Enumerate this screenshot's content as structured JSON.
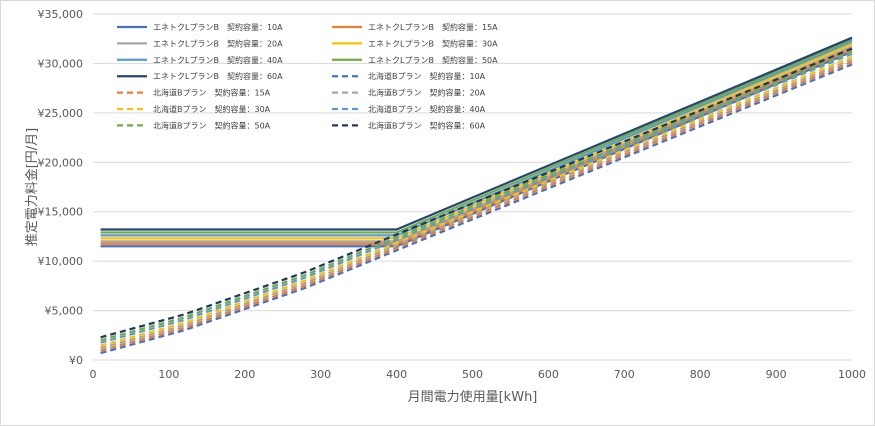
{
  "chart_data": {
    "type": "line",
    "title": "",
    "xlabel": "月間電力使用量[kWh]",
    "ylabel": "推定電力料金[円/月]",
    "xlim": [
      0,
      1000
    ],
    "ylim": [
      0,
      35000
    ],
    "x_ticks": [
      "0",
      "100",
      "200",
      "300",
      "400",
      "500",
      "600",
      "700",
      "800",
      "900",
      "1000"
    ],
    "y_ticks": [
      "¥0",
      "¥5,000",
      "¥10,000",
      "¥15,000",
      "¥20,000",
      "¥25,000",
      "¥30,000",
      "¥35,000"
    ],
    "grid": "horizontal",
    "legend_position": "top-left",
    "series": [
      {
        "name": "エネトクLプランB　契約容量：10A",
        "color": "#4472c4",
        "dash": false,
        "points": [
          [
            10,
            11500
          ],
          [
            400,
            11500
          ],
          [
            1000,
            31200
          ]
        ]
      },
      {
        "name": "エネトクLプランB　契約容量：15A",
        "color": "#ed7d31",
        "dash": false,
        "points": [
          [
            10,
            11750
          ],
          [
            400,
            11750
          ],
          [
            1000,
            31450
          ]
        ]
      },
      {
        "name": "エネトクLプランB　契約容量：20A",
        "color": "#a5a5a5",
        "dash": false,
        "points": [
          [
            10,
            12000
          ],
          [
            400,
            12000
          ],
          [
            1000,
            31700
          ]
        ]
      },
      {
        "name": "エネトクLプランB　契約容量：30A",
        "color": "#ffc000",
        "dash": false,
        "points": [
          [
            10,
            12300
          ],
          [
            400,
            12300
          ],
          [
            1000,
            31950
          ]
        ]
      },
      {
        "name": "エネトクLプランB　契約容量：40A",
        "color": "#5b9bd5",
        "dash": false,
        "points": [
          [
            10,
            12600
          ],
          [
            400,
            12600
          ],
          [
            1000,
            32200
          ]
        ]
      },
      {
        "name": "エネトクLプランB　契約容量：50A",
        "color": "#70ad47",
        "dash": false,
        "points": [
          [
            10,
            12900
          ],
          [
            400,
            12900
          ],
          [
            1000,
            32400
          ]
        ]
      },
      {
        "name": "エネトクLプランB　契約容量：60A",
        "color": "#264478",
        "dash": false,
        "points": [
          [
            10,
            13200
          ],
          [
            400,
            13200
          ],
          [
            1000,
            32600
          ]
        ]
      },
      {
        "name": "北海道Bプラン　契約容量：10A",
        "color": "#4472c4",
        "dash": true,
        "points": [
          [
            10,
            700
          ],
          [
            120,
            3000
          ],
          [
            280,
            7300
          ],
          [
            400,
            11100
          ],
          [
            1000,
            29900
          ]
        ]
      },
      {
        "name": "北海道Bプラン　契約容量：15A",
        "color": "#ed7d31",
        "dash": true,
        "points": [
          [
            10,
            950
          ],
          [
            120,
            3250
          ],
          [
            280,
            7550
          ],
          [
            400,
            11350
          ],
          [
            1000,
            30150
          ]
        ]
      },
      {
        "name": "北海道Bプラン　契約容量：20A",
        "color": "#a5a5a5",
        "dash": true,
        "points": [
          [
            10,
            1200
          ],
          [
            120,
            3500
          ],
          [
            280,
            7800
          ],
          [
            400,
            11600
          ],
          [
            1000,
            30400
          ]
        ]
      },
      {
        "name": "北海道Bプラン　契約容量：30A",
        "color": "#ffc000",
        "dash": true,
        "points": [
          [
            10,
            1450
          ],
          [
            120,
            3750
          ],
          [
            280,
            8050
          ],
          [
            400,
            11850
          ],
          [
            1000,
            30650
          ]
        ]
      },
      {
        "name": "北海道Bプラン　契約容量：40A",
        "color": "#5b9bd5",
        "dash": true,
        "points": [
          [
            10,
            1750
          ],
          [
            120,
            4050
          ],
          [
            280,
            8350
          ],
          [
            400,
            12150
          ],
          [
            1000,
            30950
          ]
        ]
      },
      {
        "name": "北海道Bプラン　契約容量：50A",
        "color": "#70ad47",
        "dash": true,
        "points": [
          [
            10,
            2000
          ],
          [
            120,
            4300
          ],
          [
            280,
            8600
          ],
          [
            400,
            12400
          ],
          [
            1000,
            31200
          ]
        ]
      },
      {
        "name": "北海道Bプラン　契約容量：60A",
        "color": "#203864",
        "dash": true,
        "points": [
          [
            10,
            2300
          ],
          [
            120,
            4600
          ],
          [
            280,
            8900
          ],
          [
            400,
            12700
          ],
          [
            1000,
            31500
          ]
        ]
      }
    ]
  }
}
